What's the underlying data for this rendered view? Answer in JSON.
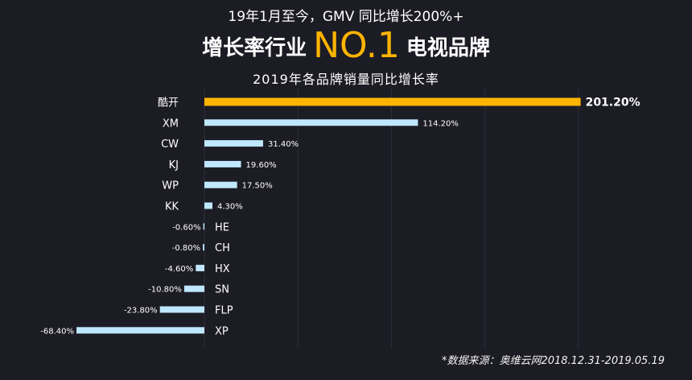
{
  "header": {
    "line1": "19年1月至今，GMV 同比增长200%+",
    "line2_prefix": "增长率行业",
    "line2_highlight": "NO.1",
    "line2_suffix": "电视品牌",
    "subtitle": "2019年各品牌销量同比增长率"
  },
  "footer": {
    "source": "*数据来源：奥维云网2018.12.31-2019.05.19"
  },
  "colors": {
    "background": "#1c1c25",
    "highlight_bar": "#ffb400",
    "bar": "#bfe7ff",
    "grid": "#2e2e38",
    "text": "#ffffff"
  },
  "chart_data": {
    "type": "bar",
    "orientation": "horizontal",
    "title": "2019年各品牌销量同比增长率",
    "categories": [
      "酷开",
      "XM",
      "CW",
      "KJ",
      "WP",
      "KK",
      "HE",
      "CH",
      "HX",
      "SN",
      "FLP",
      "XP"
    ],
    "values": [
      201.2,
      114.2,
      31.4,
      19.6,
      17.5,
      4.3,
      -0.6,
      -0.8,
      -4.6,
      -10.8,
      -23.8,
      -68.4
    ],
    "labels": [
      "201.20%",
      "114.20%",
      "31.40%",
      "19.60%",
      "17.50%",
      "4.30%",
      "-0.60%",
      "-0.80%",
      "-4.60%",
      "-10.80%",
      "-23.80%",
      "-68.40%"
    ],
    "highlight_index": 0,
    "unit": "%",
    "xlim": [
      -70,
      210
    ],
    "grid": "vertical"
  }
}
